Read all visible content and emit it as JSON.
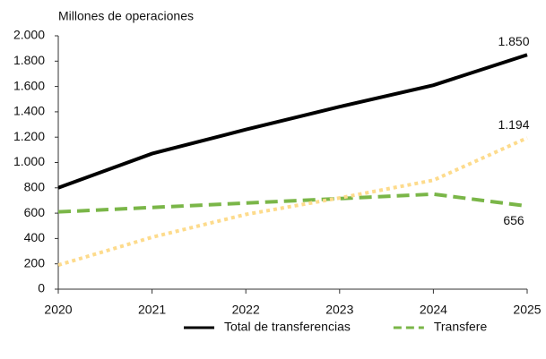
{
  "chart_data": {
    "type": "line",
    "y_label": "Millones de operaciones",
    "x": [
      2020,
      2021,
      2022,
      2023,
      2024,
      2025
    ],
    "xlim": [
      2020,
      2025
    ],
    "xticks": [
      2020,
      2021,
      2022,
      2023,
      2024,
      2025
    ],
    "ylim": [
      0,
      2000
    ],
    "yticks": [
      0,
      200,
      400,
      600,
      800,
      {
        "value": 1000,
        "label": "1.000"
      },
      {
        "value": 1200,
        "label": "1.200"
      },
      {
        "value": 1400,
        "label": "1.400"
      },
      {
        "value": 1600,
        "label": "1.600"
      },
      {
        "value": 1800,
        "label": "1.800"
      },
      {
        "value": 2000,
        "label": "2.000"
      }
    ],
    "grid": false,
    "legend": "bottom",
    "series": [
      {
        "name": "Total de transferencias",
        "color": "#000000",
        "style": "solid",
        "values": [
          800,
          1070,
          1260,
          1440,
          1610,
          1850
        ],
        "value_labels": [
          null,
          null,
          null,
          null,
          null,
          "1.850"
        ]
      },
      {
        "name": "Transfere",
        "color": "#7ab648",
        "style": "dashed",
        "values": [
          610,
          645,
          680,
          715,
          750,
          656
        ],
        "value_labels": [
          null,
          null,
          null,
          null,
          null,
          "656"
        ]
      },
      {
        "color": "#fddb8c",
        "style": "dotted",
        "values": [
          190,
          410,
          590,
          720,
          860,
          1194
        ],
        "value_labels": [
          null,
          null,
          null,
          null,
          null,
          "1.194"
        ]
      }
    ]
  }
}
